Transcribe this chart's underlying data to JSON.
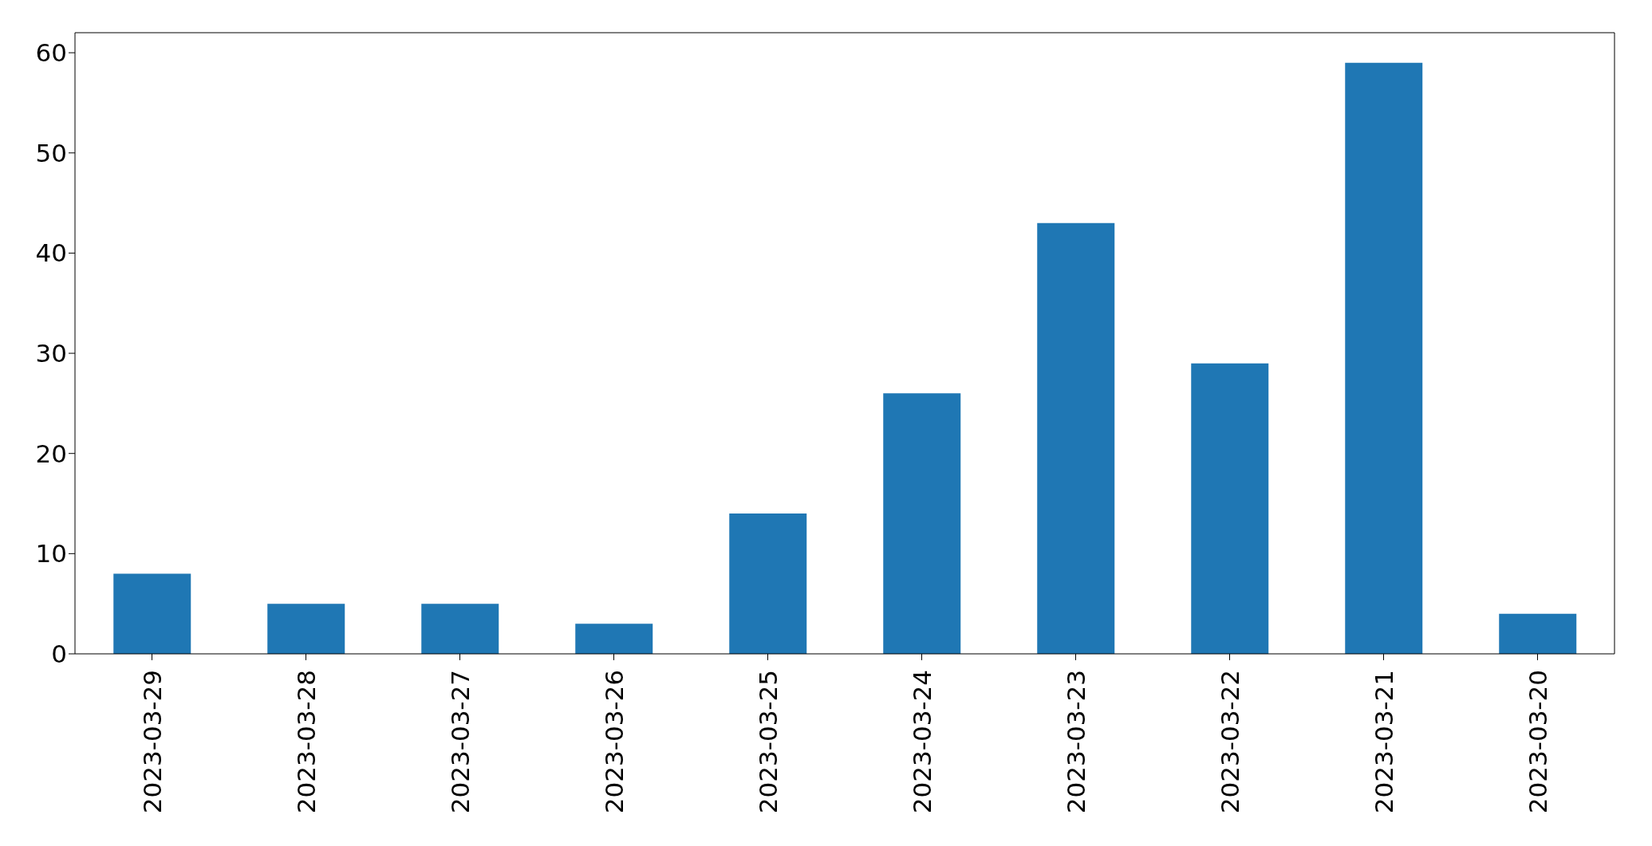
{
  "chart_data": {
    "type": "bar",
    "categories": [
      "2023-03-29",
      "2023-03-28",
      "2023-03-27",
      "2023-03-26",
      "2023-03-25",
      "2023-03-24",
      "2023-03-23",
      "2023-03-22",
      "2023-03-21",
      "2023-03-20"
    ],
    "values": [
      8,
      5,
      5,
      3,
      14,
      26,
      43,
      29,
      59,
      4
    ],
    "color": "#1f77b4",
    "ylim": [
      0,
      62
    ],
    "yticks": [
      0,
      10,
      20,
      30,
      40,
      50,
      60
    ],
    "grid": false,
    "legend": false
  }
}
